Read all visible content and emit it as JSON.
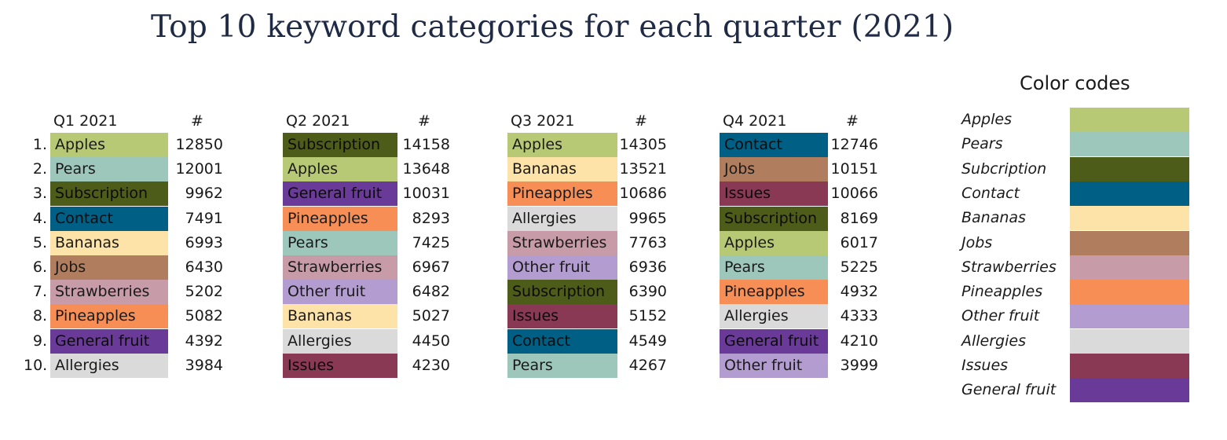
{
  "title": "Top 10 keyword categories for each quarter (2021)",
  "colors": {
    "Apples": "#b7c975",
    "Pears": "#9ec7bc",
    "Subscription": "#4e5c1a",
    "Subcription": "#4e5c1a",
    "Contact": "#005f84",
    "Bananas": "#fde3a7",
    "Jobs": "#b07e5e",
    "Strawberries": "#c89ba8",
    "Pineapples": "#f68e56",
    "Other fruit": "#b39ccf",
    "Allergies": "#dadada",
    "Issues": "#8a3954",
    "General fruit": "#6a3a99"
  },
  "legend": {
    "title": "Color codes",
    "items": [
      "Apples",
      "Pears",
      "Subcription",
      "Contact",
      "Bananas",
      "Jobs",
      "Strawberries",
      "Pineapples",
      "Other fruit",
      "Allergies",
      "Issues",
      "General fruit"
    ]
  },
  "chart_data": {
    "type": "table",
    "title": "Top 10 keyword categories for each quarter (2021)",
    "ranks": [
      "1.",
      "2.",
      "3.",
      "4.",
      "5.",
      "6.",
      "7.",
      "8.",
      "9.",
      "10."
    ],
    "count_header": "#",
    "quarters": [
      {
        "name": "Q1 2021",
        "categories": [
          "Apples",
          "Pears",
          "Subscription",
          "Contact",
          "Bananas",
          "Jobs",
          "Strawberries",
          "Pineapples",
          "General fruit",
          "Allergies"
        ],
        "values": [
          12850,
          12001,
          9962,
          7491,
          6993,
          6430,
          5202,
          5082,
          4392,
          3984
        ]
      },
      {
        "name": "Q2 2021",
        "categories": [
          "Subscription",
          "Apples",
          "General fruit",
          "Pineapples",
          "Pears",
          "Strawberries",
          "Other fruit",
          "Bananas",
          "Allergies",
          "Issues"
        ],
        "values": [
          14158,
          13648,
          10031,
          8293,
          7425,
          6967,
          6482,
          5027,
          4450,
          4230
        ]
      },
      {
        "name": "Q3 2021",
        "categories": [
          "Apples",
          "Bananas",
          "Pineapples",
          "Allergies",
          "Strawberries",
          "Other fruit",
          "Subscription",
          "Issues",
          "Contact",
          "Pears"
        ],
        "values": [
          14305,
          13521,
          10686,
          9965,
          7763,
          6936,
          6390,
          5152,
          4549,
          4267
        ]
      },
      {
        "name": "Q4 2021",
        "categories": [
          "Contact",
          "Jobs",
          "Issues",
          "Subscription",
          "Apples",
          "Pears",
          "Pineapples",
          "Allergies",
          "General fruit",
          "Other fruit"
        ],
        "values": [
          12746,
          10151,
          10066,
          8169,
          6017,
          5225,
          4932,
          4333,
          4210,
          3999
        ]
      }
    ]
  }
}
